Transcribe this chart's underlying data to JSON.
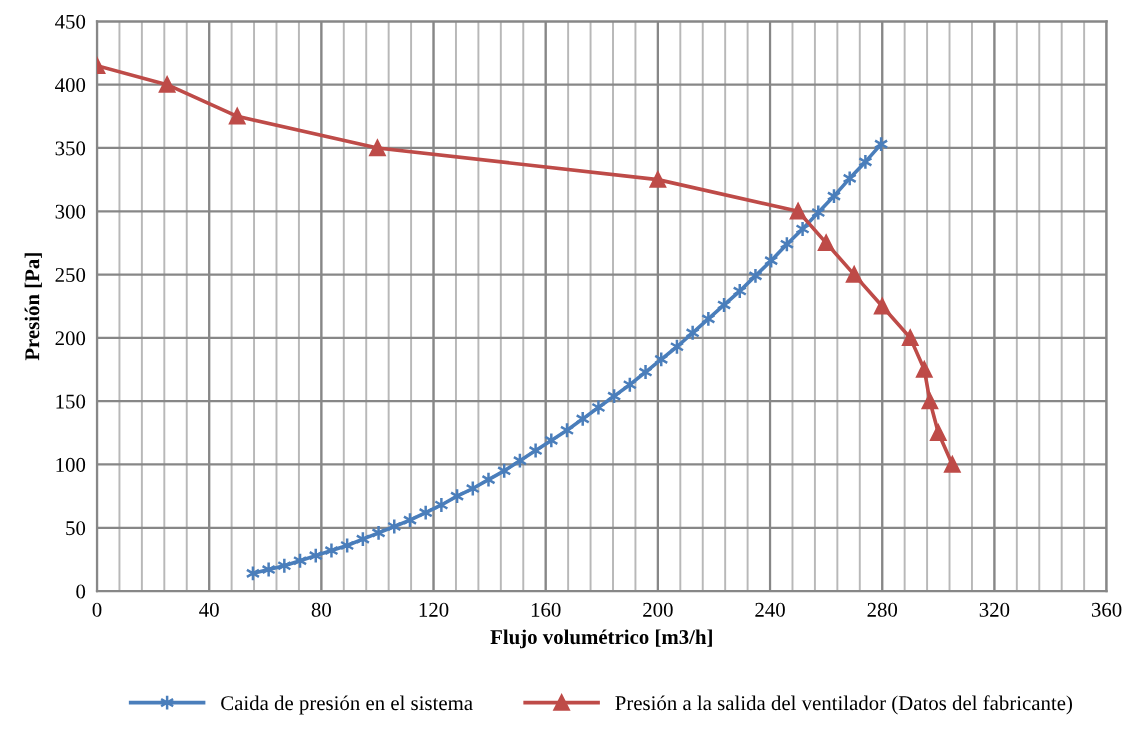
{
  "chart_data": {
    "type": "line",
    "xlabel": "Flujo volumétrico [m3/h]",
    "ylabel": "Presión [Pa]",
    "xlim": [
      0,
      360
    ],
    "xticks": [
      0,
      40,
      80,
      120,
      160,
      200,
      240,
      280,
      320,
      360
    ],
    "ylim": [
      0,
      450
    ],
    "yticks": [
      0,
      50,
      100,
      150,
      200,
      250,
      300,
      350,
      400,
      450
    ],
    "grid": true,
    "legend": "bottom",
    "line_style": "solid",
    "series": [
      {
        "name": "Caida de presión en el sistema",
        "color": "#4a7ebb",
        "marker": "cross",
        "x": [
          55.6,
          61.2,
          66.8,
          72.4,
          78.0,
          83.6,
          89.2,
          94.8,
          100.4,
          106.0,
          111.6,
          117.2,
          122.8,
          128.4,
          134.0,
          139.6,
          145.2,
          150.8,
          156.4,
          162.0,
          167.6,
          173.2,
          178.8,
          184.4,
          190.0,
          195.6,
          201.2,
          206.8,
          212.4,
          218.0,
          223.6,
          229.2,
          234.8,
          240.4,
          246.0,
          251.6,
          257.2,
          262.8,
          268.4,
          274.0,
          279.6
        ],
        "values": [
          14,
          17,
          20,
          24,
          28,
          32,
          36,
          41,
          46,
          51,
          56,
          62,
          68,
          75,
          81,
          88,
          95,
          103,
          111,
          119,
          127,
          136,
          145,
          154,
          163,
          173,
          183,
          193,
          204,
          215,
          226,
          237,
          249,
          261,
          274,
          286,
          299,
          312,
          326,
          339,
          353
        ]
      },
      {
        "name": "Presión a la salida del ventilador (Datos del fabricante)",
        "color": "#be4b48",
        "marker": "triangle",
        "x": [
          0,
          25,
          50,
          100,
          200,
          250,
          260,
          270,
          280,
          290,
          295,
          297,
          300,
          305
        ],
        "values": [
          415,
          400,
          375,
          350,
          325,
          300,
          275,
          250,
          225,
          200,
          175,
          150,
          125,
          100
        ]
      }
    ]
  }
}
